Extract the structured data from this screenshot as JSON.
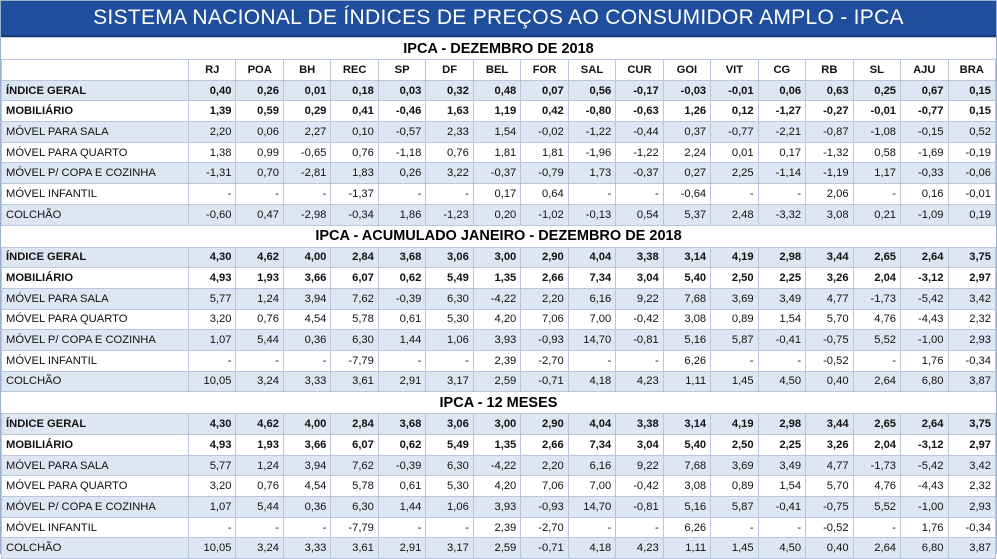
{
  "banner": "SISTEMA NACIONAL DE ÍNDICES DE PREÇOS AO CONSUMIDOR AMPLO - IPCA",
  "columns": [
    "RJ",
    "POA",
    "BH",
    "REC",
    "SP",
    "DF",
    "BEL",
    "FOR",
    "SAL",
    "CUR",
    "GOI",
    "VIT",
    "CG",
    "RB",
    "SL",
    "AJU",
    "BRA"
  ],
  "sections": [
    {
      "title": "IPCA - DEZEMBRO DE 2018",
      "show_header": true,
      "rows": [
        {
          "label": "ÍNDICE GERAL",
          "bold": true,
          "values": [
            "0,40",
            "0,26",
            "0,01",
            "0,18",
            "0,03",
            "0,32",
            "0,48",
            "0,07",
            "0,56",
            "-0,17",
            "-0,03",
            "-0,01",
            "0,06",
            "0,63",
            "0,25",
            "0,67",
            "0,15"
          ]
        },
        {
          "label": "MOBILIÁRIO",
          "bold": true,
          "values": [
            "1,39",
            "0,59",
            "0,29",
            "0,41",
            "-0,46",
            "1,63",
            "1,19",
            "0,42",
            "-0,80",
            "-0,63",
            "1,26",
            "0,12",
            "-1,27",
            "-0,27",
            "-0,01",
            "-0,77",
            "0,15"
          ]
        },
        {
          "label": "MÓVEL PARA SALA",
          "bold": false,
          "values": [
            "2,20",
            "0,06",
            "2,27",
            "0,10",
            "-0,57",
            "2,33",
            "1,54",
            "-0,02",
            "-1,22",
            "-0,44",
            "0,37",
            "-0,77",
            "-2,21",
            "-0,87",
            "-1,08",
            "-0,15",
            "0,52"
          ]
        },
        {
          "label": "MÓVEL PARA QUARTO",
          "bold": false,
          "values": [
            "1,38",
            "0,99",
            "-0,65",
            "0,76",
            "-1,18",
            "0,76",
            "1,81",
            "1,81",
            "-1,96",
            "-1,22",
            "2,24",
            "0,01",
            "0,17",
            "-1,32",
            "0,58",
            "-1,69",
            "-0,19"
          ]
        },
        {
          "label": "MÓVEL P/ COPA E COZINHA",
          "bold": false,
          "values": [
            "-1,31",
            "0,70",
            "-2,81",
            "1,83",
            "0,26",
            "3,22",
            "-0,37",
            "-0,79",
            "1,73",
            "-0,37",
            "0,27",
            "2,25",
            "-1,14",
            "-1,19",
            "1,17",
            "-0,33",
            "-0,06"
          ]
        },
        {
          "label": "MÓVEL INFANTIL",
          "bold": false,
          "values": [
            "-",
            "-",
            "-",
            "-1,37",
            "-",
            "-",
            "0,17",
            "0,64",
            "-",
            "-",
            "-0,64",
            "-",
            "-",
            "2,06",
            "-",
            "0,16",
            "-0,01"
          ]
        },
        {
          "label": "COLCHÃO",
          "bold": false,
          "values": [
            "-0,60",
            "0,47",
            "-2,98",
            "-0,34",
            "1,86",
            "-1,23",
            "0,20",
            "-1,02",
            "-0,13",
            "0,54",
            "5,37",
            "2,48",
            "-3,32",
            "3,08",
            "0,21",
            "-1,09",
            "0,19"
          ]
        }
      ]
    },
    {
      "title": "IPCA - ACUMULADO JANEIRO - DEZEMBRO DE 2018",
      "show_header": false,
      "rows": [
        {
          "label": "ÍNDICE GERAL",
          "bold": true,
          "values": [
            "4,30",
            "4,62",
            "4,00",
            "2,84",
            "3,68",
            "3,06",
            "3,00",
            "2,90",
            "4,04",
            "3,38",
            "3,14",
            "4,19",
            "2,98",
            "3,44",
            "2,65",
            "2,64",
            "3,75"
          ]
        },
        {
          "label": "MOBILIÁRIO",
          "bold": true,
          "values": [
            "4,93",
            "1,93",
            "3,66",
            "6,07",
            "0,62",
            "5,49",
            "1,35",
            "2,66",
            "7,34",
            "3,04",
            "5,40",
            "2,50",
            "2,25",
            "3,26",
            "2,04",
            "-3,12",
            "2,97"
          ]
        },
        {
          "label": "MÓVEL PARA SALA",
          "bold": false,
          "values": [
            "5,77",
            "1,24",
            "3,94",
            "7,62",
            "-0,39",
            "6,30",
            "-4,22",
            "2,20",
            "6,16",
            "9,22",
            "7,68",
            "3,69",
            "3,49",
            "4,77",
            "-1,73",
            "-5,42",
            "3,42"
          ]
        },
        {
          "label": "MÓVEL PARA QUARTO",
          "bold": false,
          "values": [
            "3,20",
            "0,76",
            "4,54",
            "5,78",
            "0,61",
            "5,30",
            "4,20",
            "7,06",
            "7,00",
            "-0,42",
            "3,08",
            "0,89",
            "1,54",
            "5,70",
            "4,76",
            "-4,43",
            "2,32"
          ]
        },
        {
          "label": "MÓVEL P/ COPA E COZINHA",
          "bold": false,
          "values": [
            "1,07",
            "5,44",
            "0,36",
            "6,30",
            "1,44",
            "1,06",
            "3,93",
            "-0,93",
            "14,70",
            "-0,81",
            "5,16",
            "5,87",
            "-0,41",
            "-0,75",
            "5,52",
            "-1,00",
            "2,93"
          ]
        },
        {
          "label": "MÓVEL INFANTIL",
          "bold": false,
          "values": [
            "-",
            "-",
            "-",
            "-7,79",
            "-",
            "-",
            "2,39",
            "-2,70",
            "-",
            "-",
            "6,26",
            "-",
            "-",
            "-0,52",
            "-",
            "1,76",
            "-0,34"
          ]
        },
        {
          "label": "COLCHÃO",
          "bold": false,
          "values": [
            "10,05",
            "3,24",
            "3,33",
            "3,61",
            "2,91",
            "3,17",
            "2,59",
            "-0,71",
            "4,18",
            "4,23",
            "1,11",
            "1,45",
            "4,50",
            "0,40",
            "2,64",
            "6,80",
            "3,87"
          ]
        }
      ]
    },
    {
      "title": "IPCA - 12 MESES",
      "show_header": false,
      "rows": [
        {
          "label": "ÍNDICE GERAL",
          "bold": true,
          "values": [
            "4,30",
            "4,62",
            "4,00",
            "2,84",
            "3,68",
            "3,06",
            "3,00",
            "2,90",
            "4,04",
            "3,38",
            "3,14",
            "4,19",
            "2,98",
            "3,44",
            "2,65",
            "2,64",
            "3,75"
          ]
        },
        {
          "label": "MOBILIÁRIO",
          "bold": true,
          "values": [
            "4,93",
            "1,93",
            "3,66",
            "6,07",
            "0,62",
            "5,49",
            "1,35",
            "2,66",
            "7,34",
            "3,04",
            "5,40",
            "2,50",
            "2,25",
            "3,26",
            "2,04",
            "-3,12",
            "2,97"
          ]
        },
        {
          "label": "MÓVEL PARA SALA",
          "bold": false,
          "values": [
            "5,77",
            "1,24",
            "3,94",
            "7,62",
            "-0,39",
            "6,30",
            "-4,22",
            "2,20",
            "6,16",
            "9,22",
            "7,68",
            "3,69",
            "3,49",
            "4,77",
            "-1,73",
            "-5,42",
            "3,42"
          ]
        },
        {
          "label": "MÓVEL PARA QUARTO",
          "bold": false,
          "values": [
            "3,20",
            "0,76",
            "4,54",
            "5,78",
            "0,61",
            "5,30",
            "4,20",
            "7,06",
            "7,00",
            "-0,42",
            "3,08",
            "0,89",
            "1,54",
            "5,70",
            "4,76",
            "-4,43",
            "2,32"
          ]
        },
        {
          "label": "MÓVEL P/ COPA E COZINHA",
          "bold": false,
          "values": [
            "1,07",
            "5,44",
            "0,36",
            "6,30",
            "1,44",
            "1,06",
            "3,93",
            "-0,93",
            "14,70",
            "-0,81",
            "5,16",
            "5,87",
            "-0,41",
            "-0,75",
            "5,52",
            "-1,00",
            "2,93"
          ]
        },
        {
          "label": "MÓVEL INFANTIL",
          "bold": false,
          "values": [
            "-",
            "-",
            "-",
            "-7,79",
            "-",
            "-",
            "2,39",
            "-2,70",
            "-",
            "-",
            "6,26",
            "-",
            "-",
            "-0,52",
            "-",
            "1,76",
            "-0,34"
          ]
        },
        {
          "label": "COLCHÃO",
          "bold": false,
          "values": [
            "10,05",
            "3,24",
            "3,33",
            "3,61",
            "2,91",
            "3,17",
            "2,59",
            "-0,71",
            "4,18",
            "4,23",
            "1,11",
            "1,45",
            "4,50",
            "0,40",
            "2,64",
            "6,80",
            "3,87"
          ]
        }
      ]
    }
  ],
  "colors": {
    "banner_bg": "#1f4e9c",
    "band_bg": "#dde6f3",
    "grid": "#b9c6db"
  }
}
